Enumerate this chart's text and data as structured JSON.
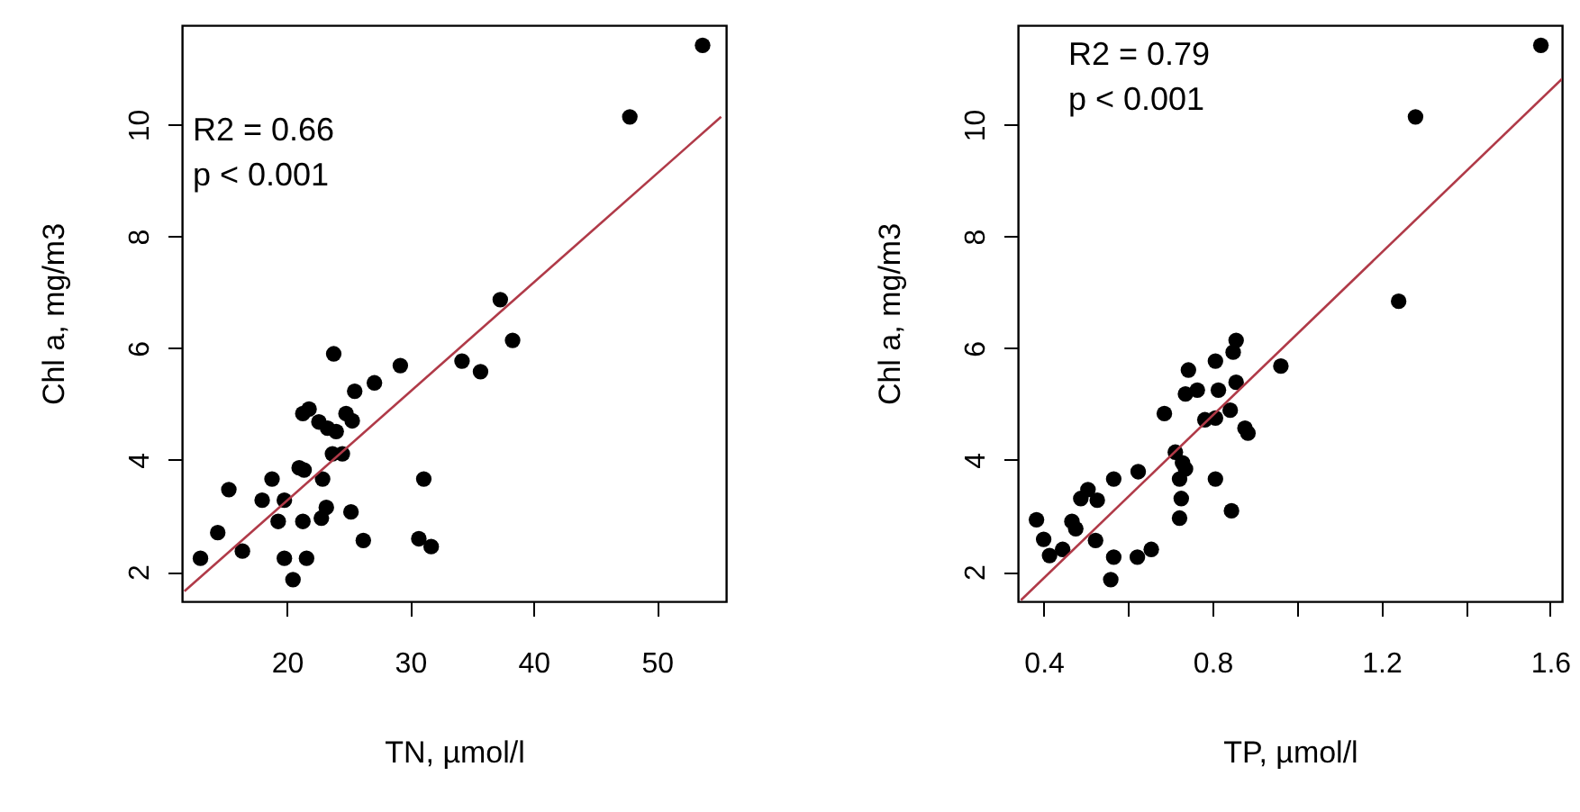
{
  "chart_data": [
    {
      "type": "scatter",
      "xlabel": "TN, µmol/l",
      "ylabel": "Chl a, mg/m3",
      "xlim": [
        11.5,
        55.6
      ],
      "ylim": [
        1.47,
        11.78
      ],
      "xticks": [
        20,
        30,
        40,
        50
      ],
      "yticks": [
        2,
        4,
        6,
        8,
        10
      ],
      "grid": false,
      "annotations": [
        "R2 = 0.66",
        "p < 0.001"
      ],
      "series": [
        {
          "color": "#000000",
          "marker": "circle",
          "x": [
            53.7,
            47.8,
            37.3,
            38.3,
            34.2,
            35.7,
            29.2,
            27.1,
            25.5,
            23.8,
            21.3,
            21.8,
            22.6,
            23.3,
            24.0,
            24.8,
            25.3,
            23.7,
            24.5,
            21.0,
            21.4,
            22.9,
            31.1,
            18.8,
            15.3,
            18.0,
            19.8,
            23.2,
            25.2,
            19.3,
            21.3,
            22.8,
            14.4,
            26.2,
            30.7,
            31.7,
            16.4,
            13.0,
            19.8,
            21.6,
            20.5
          ],
          "values": [
            11.42,
            10.14,
            6.87,
            6.14,
            5.77,
            5.58,
            5.69,
            5.38,
            5.23,
            5.9,
            4.83,
            4.91,
            4.68,
            4.57,
            4.51,
            4.83,
            4.7,
            4.11,
            4.11,
            3.86,
            3.82,
            3.66,
            3.66,
            3.66,
            3.47,
            3.28,
            3.28,
            3.15,
            3.07,
            2.9,
            2.9,
            2.96,
            2.7,
            2.56,
            2.59,
            2.45,
            2.37,
            2.24,
            2.24,
            2.24,
            1.86
          ]
        },
        {
          "type": "line",
          "color": "#b03a48",
          "line_style": "solid",
          "marker": "none",
          "x": [
            11.7,
            55.2
          ],
          "values": [
            1.65,
            10.14
          ]
        }
      ]
    },
    {
      "type": "scatter",
      "xlabel": "TP, µmol/l",
      "ylabel": "Chl a, mg/m3",
      "xlim": [
        0.339,
        1.628
      ],
      "ylim": [
        1.47,
        11.78
      ],
      "xticks": [
        0.4,
        {
          "value": 0.6,
          "label": null
        },
        0.8,
        {
          "value": 1.0,
          "label": null
        },
        1.2,
        {
          "value": 1.4,
          "label": null
        },
        1.6
      ],
      "yticks": [
        2,
        4,
        6,
        8,
        10
      ],
      "grid": false,
      "annotations": [
        "R2 = 0.79",
        "p < 0.001"
      ],
      "series": [
        {
          "color": "#000000",
          "marker": "circle",
          "x": [
            1.578,
            1.281,
            1.241,
            0.962,
            0.856,
            0.849,
            0.807,
            0.743,
            0.736,
            0.764,
            0.814,
            0.856,
            0.686,
            0.782,
            0.807,
            0.842,
            0.877,
            0.884,
            0.712,
            0.729,
            0.736,
            0.722,
            0.807,
            0.726,
            0.722,
            0.845,
            0.624,
            0.566,
            0.505,
            0.488,
            0.527,
            0.467,
            0.476,
            0.383,
            0.4,
            0.414,
            0.445,
            0.523,
            0.566,
            0.622,
            0.655,
            0.559
          ],
          "values": [
            11.42,
            10.14,
            6.84,
            5.68,
            6.14,
            5.93,
            5.77,
            5.61,
            5.18,
            5.25,
            5.25,
            5.39,
            4.83,
            4.72,
            4.75,
            4.89,
            4.57,
            4.48,
            4.14,
            3.95,
            3.84,
            3.66,
            3.66,
            3.31,
            2.96,
            3.09,
            3.79,
            3.66,
            3.47,
            3.31,
            3.28,
            2.9,
            2.77,
            2.93,
            2.58,
            2.29,
            2.4,
            2.56,
            2.26,
            2.26,
            2.4,
            1.86
          ]
        },
        {
          "type": "line",
          "color": "#b03a48",
          "line_style": "solid",
          "marker": "none",
          "x": [
            0.346,
            1.628
          ],
          "values": [
            1.49,
            10.82
          ]
        }
      ]
    }
  ]
}
